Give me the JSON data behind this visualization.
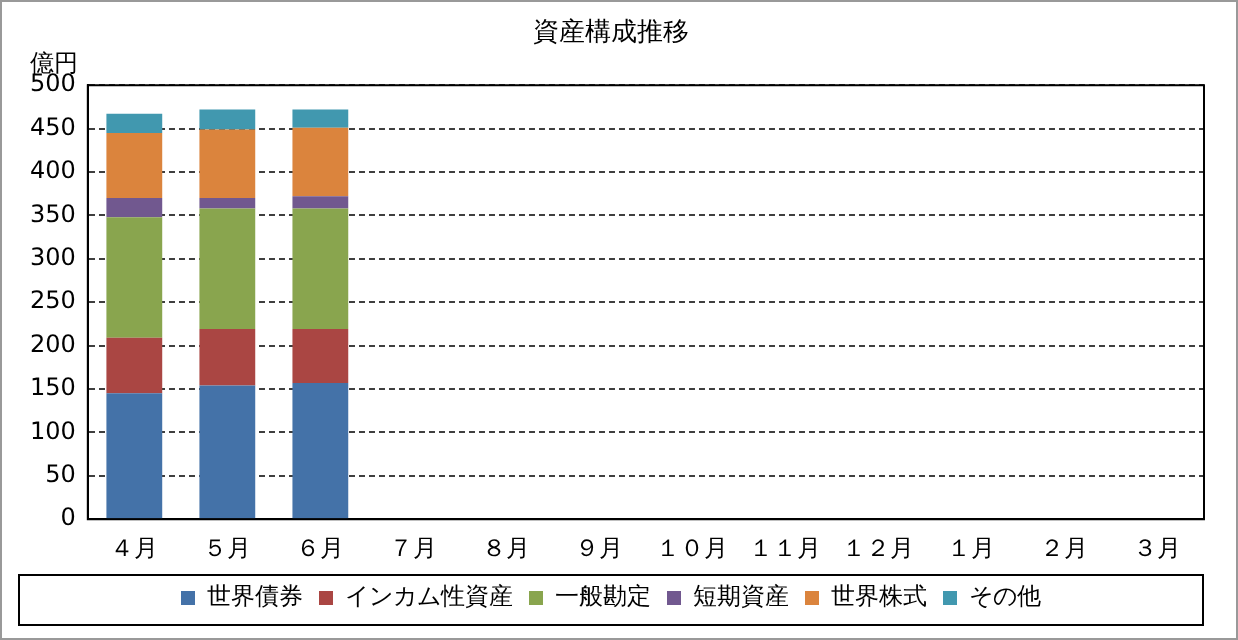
{
  "chart_data": {
    "type": "bar",
    "title": "資産構成推移",
    "ylabel": "億円",
    "categories": [
      "４月",
      "５月",
      "６月",
      "７月",
      "８月",
      "９月",
      "１０月",
      "１１月",
      "１２月",
      "１月",
      "２月",
      "３月"
    ],
    "stacked": true,
    "series": [
      {
        "name": "世界債券",
        "color": "#4472a8",
        "values": [
          145,
          154,
          157,
          null,
          null,
          null,
          null,
          null,
          null,
          null,
          null,
          null
        ]
      },
      {
        "name": "インカム性資産",
        "color": "#aa4643",
        "values": [
          64,
          65,
          62,
          null,
          null,
          null,
          null,
          null,
          null,
          null,
          null,
          null
        ]
      },
      {
        "name": "一般勘定",
        "color": "#89a54e",
        "values": [
          139,
          139,
          139,
          null,
          null,
          null,
          null,
          null,
          null,
          null,
          null,
          null
        ]
      },
      {
        "name": "短期資産",
        "color": "#71588f",
        "values": [
          22,
          12,
          14,
          null,
          null,
          null,
          null,
          null,
          null,
          null,
          null,
          null
        ]
      },
      {
        "name": "世界株式",
        "color": "#db843d",
        "values": [
          75,
          79,
          79,
          null,
          null,
          null,
          null,
          null,
          null,
          null,
          null,
          null
        ]
      },
      {
        "name": "その他",
        "color": "#4198af",
        "values": [
          22,
          23,
          21,
          null,
          null,
          null,
          null,
          null,
          null,
          null,
          null,
          null
        ]
      }
    ],
    "ylim": [
      0,
      500
    ],
    "yticks": [
      0,
      50,
      100,
      150,
      200,
      250,
      300,
      350,
      400,
      450,
      500
    ],
    "grid": "y",
    "legend": "bottom"
  }
}
